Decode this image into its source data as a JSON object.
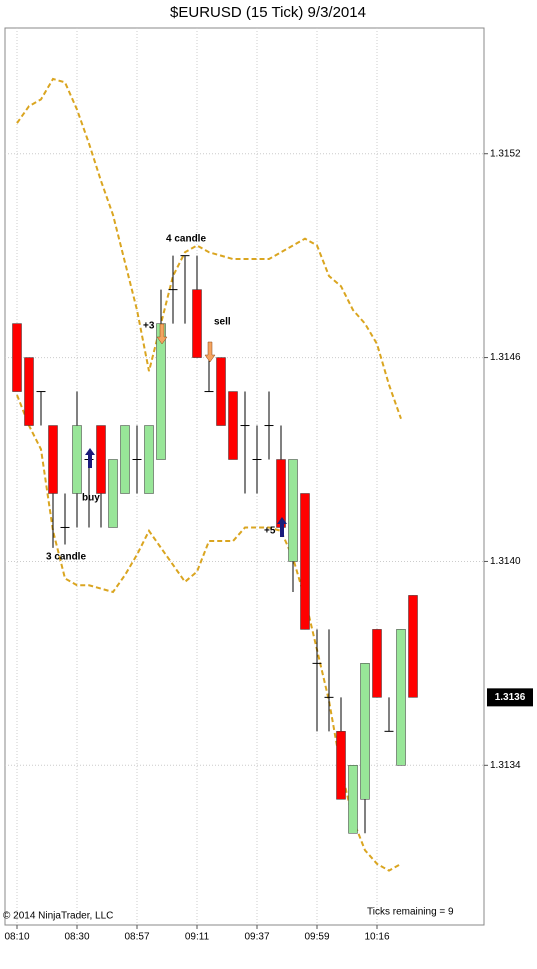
{
  "chart_data": {
    "type": "candlestick",
    "title": "$EURUSD (15 Tick)  9/3/2014",
    "categories": [
      "08:10",
      null,
      null,
      null,
      null,
      "08:30",
      null,
      null,
      null,
      null,
      "08:57",
      null,
      null,
      null,
      null,
      "09:11",
      null,
      null,
      null,
      null,
      "09:37",
      null,
      null,
      null,
      null,
      "09:59",
      null,
      null,
      null,
      null,
      "10:16",
      null,
      null,
      null
    ],
    "open": [
      1.3147,
      1.3146,
      1.3145,
      1.3144,
      1.3141,
      1.3142,
      1.3143,
      1.3144,
      1.3141,
      1.3142,
      1.3143,
      1.3142,
      1.3143,
      1.3148,
      1.3149,
      1.3148,
      1.3145,
      1.3146,
      1.3145,
      1.3144,
      1.3143,
      1.3144,
      1.3143,
      1.314,
      1.3142,
      1.3137,
      1.3136,
      1.3135,
      1.3132,
      1.3133,
      1.3138,
      1.3135,
      1.3134,
      1.3139
    ],
    "high": [
      1.3147,
      1.3146,
      1.3145,
      1.3144,
      1.3142,
      1.3145,
      1.3143,
      1.3144,
      1.3143,
      1.3144,
      1.3144,
      1.3144,
      1.3148,
      1.3149,
      1.3149,
      1.3149,
      1.3146,
      1.3146,
      1.3145,
      1.3145,
      1.3144,
      1.3145,
      1.3144,
      1.3143,
      1.3142,
      1.3138,
      1.3138,
      1.3136,
      1.3134,
      1.3137,
      1.3138,
      1.3136,
      1.3138,
      1.3139
    ],
    "low": [
      1.3145,
      1.3144,
      1.3144,
      1.31404,
      1.31405,
      1.3141,
      1.3141,
      1.3141,
      1.3141,
      1.3142,
      1.3142,
      1.3142,
      1.3143,
      1.3147,
      1.3147,
      1.3146,
      1.3145,
      1.3144,
      1.3143,
      1.3142,
      1.3142,
      1.3143,
      1.3141,
      1.31391,
      1.3138,
      1.3135,
      1.3135,
      1.3133,
      1.3132,
      1.3132,
      1.3136,
      1.3135,
      1.3134,
      1.3136
    ],
    "close": [
      1.3145,
      1.3144,
      1.3145,
      1.3142,
      1.3141,
      1.3144,
      1.3143,
      1.3142,
      1.3143,
      1.3144,
      1.3143,
      1.3144,
      1.3147,
      1.3148,
      1.3149,
      1.3146,
      1.3145,
      1.3144,
      1.3143,
      1.3144,
      1.3143,
      1.3144,
      1.3141,
      1.3143,
      1.3138,
      1.3137,
      1.3136,
      1.3133,
      1.3134,
      1.3137,
      1.3136,
      1.3135,
      1.3138,
      1.3136
    ],
    "up_color": "#98e698",
    "down_color": "#ff0000",
    "upper_band": [
      1.31529,
      1.31534,
      1.31536,
      1.31542,
      1.31541,
      1.31533,
      1.31523,
      1.31512,
      1.31502,
      1.31488,
      1.31474,
      1.31456,
      1.3147,
      1.31484,
      1.31491,
      1.31493,
      1.31491,
      1.3149,
      1.31489,
      1.31489,
      1.31489,
      1.31489,
      1.31491,
      1.31493,
      1.31495,
      1.31493,
      1.31484,
      1.31481,
      1.31474,
      1.3147,
      1.31464,
      1.31452,
      1.31442,
      null
    ],
    "lower_band": [
      1.31449,
      1.3144,
      1.31433,
      1.31409,
      1.31395,
      1.31393,
      1.31393,
      1.31392,
      1.31391,
      1.31396,
      1.31402,
      1.31409,
      1.31404,
      1.31399,
      1.31394,
      1.31397,
      1.31406,
      1.31406,
      1.31406,
      1.3141,
      1.3141,
      1.3141,
      1.31409,
      1.31401,
      1.31389,
      1.31374,
      1.31359,
      1.31339,
      1.31324,
      1.31315,
      1.31311,
      1.31309,
      1.31311,
      null
    ],
    "band_color": "#daa520",
    "ylim": [
      1.31293,
      1.31557
    ],
    "yticks": [
      1.3134,
      {
        "value": 1.314,
        "label": "1.3140"
      },
      1.3146,
      1.3152
    ],
    "grid": true,
    "last_price": 1.3136,
    "annotations": [
      "3 candle",
      "buy",
      "+3",
      "4 candle",
      "sell",
      "+5"
    ],
    "copyright": "© 2014 NinjaTrader, LLC",
    "status": "Ticks remaining = 9"
  }
}
